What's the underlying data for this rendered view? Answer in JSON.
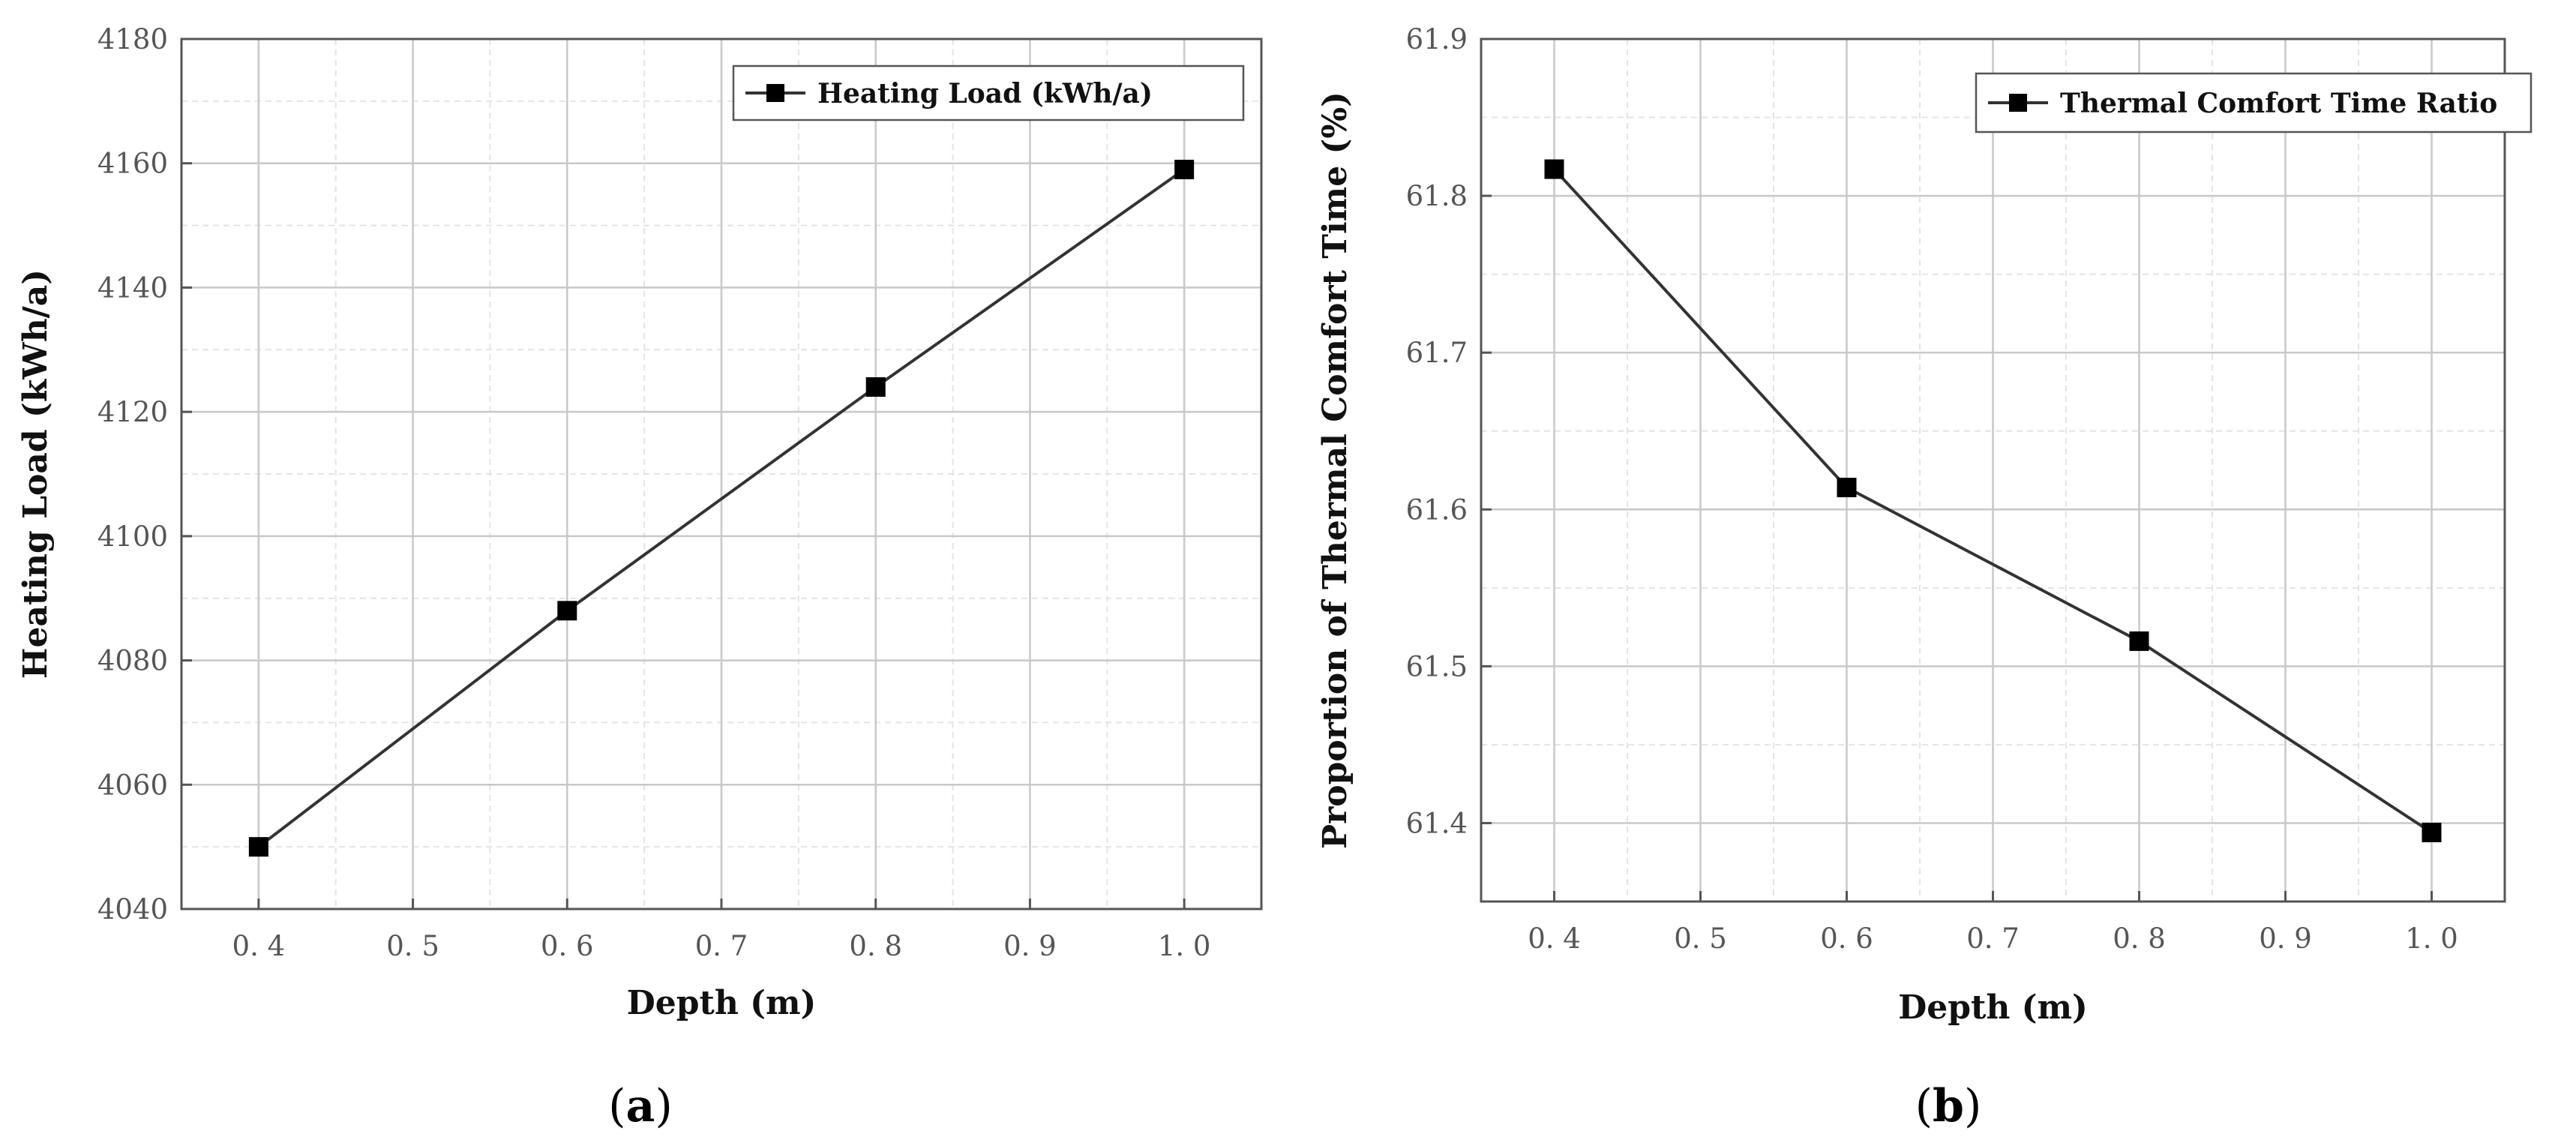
{
  "chart_data": [
    {
      "type": "line",
      "panel_label": {
        "open": "(",
        "letter": "a",
        "close": ")"
      },
      "x": [
        0.4,
        0.6,
        0.8,
        1.0
      ],
      "series": [
        {
          "name": "Heating Load (kWh/a)",
          "values": [
            4050,
            4088,
            4124,
            4159
          ],
          "marker": "square",
          "color": "#333333"
        }
      ],
      "xlabel": "Depth (m)",
      "ylabel": "Heating Load (kWh/a)",
      "xlim": [
        0.35,
        1.05
      ],
      "ylim": [
        4040,
        4180
      ],
      "xticks": [
        0.4,
        0.5,
        0.6,
        0.7,
        0.8,
        0.9,
        1.0
      ],
      "xtick_labels": [
        "0. 4",
        "0. 5",
        "0. 6",
        "0. 7",
        "0. 8",
        "0. 9",
        "1. 0"
      ],
      "yticks": [
        4040,
        4060,
        4080,
        4100,
        4120,
        4140,
        4160,
        4180
      ],
      "ytick_labels": [
        "4040",
        "4060",
        "4080",
        "4100",
        "4120",
        "4140",
        "4160",
        "4180"
      ],
      "grid": true,
      "legend_position": "top-right"
    },
    {
      "type": "line",
      "panel_label": {
        "open": "(",
        "letter": "b",
        "close": ")"
      },
      "x": [
        0.4,
        0.6,
        0.8,
        1.0
      ],
      "series": [
        {
          "name": "Thermal Comfort Time Ratio",
          "values": [
            61.817,
            61.614,
            61.516,
            61.394
          ],
          "marker": "square",
          "color": "#333333"
        }
      ],
      "xlabel": "Depth (m)",
      "ylabel": "Proportion of Thermal Comfort Time (%)",
      "xlim": [
        0.35,
        1.05
      ],
      "ylim": [
        61.35,
        61.9
      ],
      "xticks": [
        0.4,
        0.5,
        0.6,
        0.7,
        0.8,
        0.9,
        1.0
      ],
      "xtick_labels": [
        "0. 4",
        "0. 5",
        "0. 6",
        "0. 7",
        "0. 8",
        "0. 9",
        "1. 0"
      ],
      "yticks": [
        61.4,
        61.5,
        61.6,
        61.7,
        61.8,
        61.9
      ],
      "ytick_labels": [
        "61.4",
        "61.5",
        "61.6",
        "61.7",
        "61.8",
        "61.9"
      ],
      "grid": true,
      "legend_position": "top-right"
    }
  ],
  "colors": {
    "line": "#333333",
    "marker": "#000000",
    "grid_major": "#c8c8c8",
    "grid_minor": "#e4e4e4",
    "axis": "#555555"
  }
}
